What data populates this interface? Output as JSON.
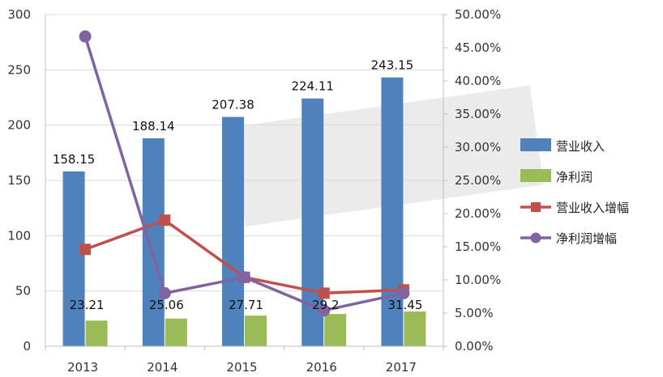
{
  "chart_data": {
    "type": "bar",
    "categories": [
      "2013",
      "2014",
      "2015",
      "2016",
      "2017"
    ],
    "series": [
      {
        "name": "营业收入",
        "type": "bar",
        "axis": "left",
        "color": "#4f81bd",
        "values": [
          158.15,
          188.14,
          207.38,
          224.11,
          243.15
        ],
        "labels": [
          "158.15",
          "188.14",
          "207.38",
          "224.11",
          "243.15"
        ]
      },
      {
        "name": "净利润",
        "type": "bar",
        "axis": "left",
        "color": "#9bbb59",
        "values": [
          23.21,
          25.06,
          27.71,
          29.2,
          31.45
        ],
        "labels": [
          "23.21",
          "25.06",
          "27.71",
          "29.2",
          "31.45"
        ]
      },
      {
        "name": "营业收入增幅",
        "type": "line",
        "axis": "right",
        "color": "#c0504d",
        "marker": "square",
        "values": [
          0.146,
          0.19,
          0.104,
          0.08,
          0.085
        ]
      },
      {
        "name": "净利润增幅",
        "type": "line",
        "axis": "right",
        "color": "#8064a2",
        "marker": "circle",
        "values": [
          0.467,
          0.08,
          0.104,
          0.054,
          0.08
        ]
      }
    ],
    "ylim_left": [
      0,
      300
    ],
    "yticks_left": [
      "0",
      "50",
      "100",
      "150",
      "200",
      "250",
      "300"
    ],
    "ylim_right": [
      0,
      0.5
    ],
    "yticks_right": [
      "0.00%",
      "5.00%",
      "10.00%",
      "15.00%",
      "20.00%",
      "25.00%",
      "30.00%",
      "35.00%",
      "40.00%",
      "45.00%",
      "50.00%"
    ],
    "grid": "horizontal",
    "legend": "right"
  }
}
